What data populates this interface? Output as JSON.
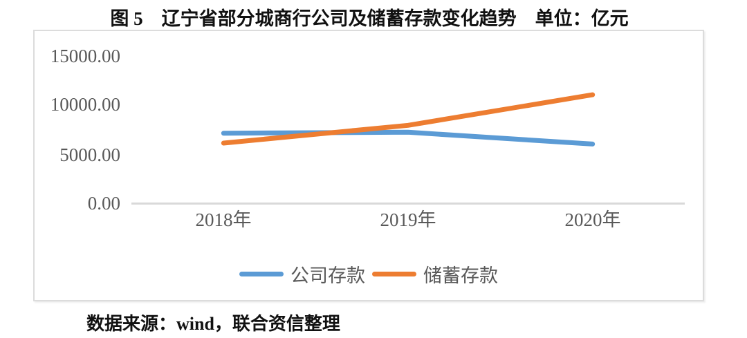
{
  "figure": {
    "source_note": "数据来源：wind，联合资信整理"
  },
  "chart_data": {
    "type": "line",
    "title": "图 5　辽宁省部分城商行公司及储蓄存款变化趋势　单位：亿元",
    "categories": [
      "2018年",
      "2019年",
      "2020年"
    ],
    "series": [
      {
        "name": "公司存款",
        "color": "#5B9BD5",
        "values": [
          7100,
          7200,
          6000
        ]
      },
      {
        "name": "储蓄存款",
        "color": "#ED7D31",
        "values": [
          6100,
          7900,
          11000
        ]
      }
    ],
    "yticks": [
      "15000.00",
      "10000.00",
      "5000.00",
      "0.00"
    ],
    "ytick_values": [
      15000,
      10000,
      5000,
      0
    ],
    "ylim": [
      0,
      15000
    ],
    "xlabel": "",
    "ylabel": "",
    "grid": false,
    "legend_position": "bottom",
    "axis_color": "#d9d9d9",
    "tick_label_color": "#595959"
  }
}
